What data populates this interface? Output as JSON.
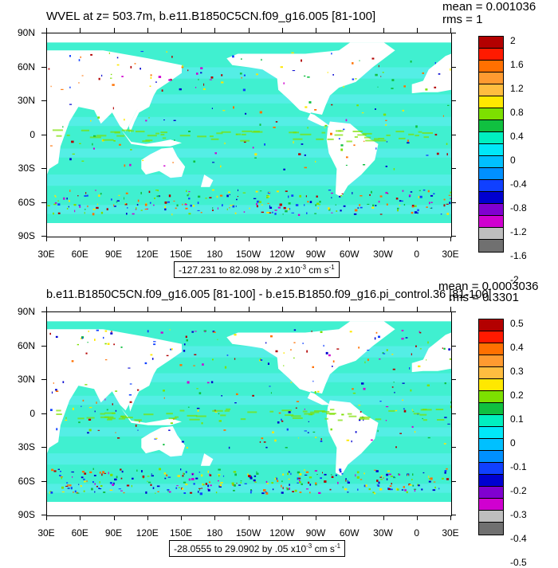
{
  "chart_data": [
    {
      "type": "heatmap",
      "title": "WVEL at z= 503.7m, b.e11.B1850C5CN.f09_g16.005 [81-100]",
      "stat_mean": "mean = 0.001036",
      "stat_rms": "rms = 1",
      "range_text": "-127.231 to 82.098 by .2 x10",
      "range_exp": "-3",
      "range_unit": " cm s",
      "range_unit_exp": "-1",
      "x_ticks": [
        "30E",
        "60E",
        "90E",
        "120E",
        "150E",
        "180",
        "150W",
        "120W",
        "90W",
        "60W",
        "30W",
        "0",
        "30E"
      ],
      "y_ticks": [
        "90N",
        "60N",
        "30N",
        "0",
        "30S",
        "60S",
        "90S"
      ],
      "colorbar_labels": [
        "2",
        "1.6",
        "1.2",
        "0.8",
        "0.4",
        "0",
        "-0.4",
        "-0.8",
        "-1.2",
        "-1.6",
        "-2"
      ],
      "colorbar_colors": [
        "#b30000",
        "#ff1a00",
        "#ff7000",
        "#ff9a30",
        "#ffbd40",
        "#ffe800",
        "#7de000",
        "#10c040",
        "#00f0c0",
        "#00e8f8",
        "#00c0ff",
        "#0090ff",
        "#1040ff",
        "#0000d0",
        "#8000d0",
        "#d000d0",
        "#bebebe",
        "#707070"
      ]
    },
    {
      "type": "heatmap",
      "title": "b.e11.B1850C5CN.f09_g16.005 [81-100] - b.e15.B1850.f09_g16.pi_control.36 [81-100]",
      "stat_mean": "mean = 0.0003036",
      "stat_rms": "rms = 0.3301",
      "range_text": "-28.0555 to 29.0902 by .05 x10",
      "range_exp": "-3",
      "range_unit": " cm s",
      "range_unit_exp": "-1",
      "x_ticks": [
        "30E",
        "60E",
        "90E",
        "120E",
        "150E",
        "180",
        "150W",
        "120W",
        "90W",
        "60W",
        "30W",
        "0",
        "30E"
      ],
      "y_ticks": [
        "90N",
        "60N",
        "30N",
        "0",
        "30S",
        "60S",
        "90S"
      ],
      "colorbar_labels": [
        "0.5",
        "0.4",
        "0.3",
        "0.2",
        "0.1",
        "0",
        "-0.1",
        "-0.2",
        "-0.3",
        "-0.4",
        "-0.5"
      ],
      "colorbar_colors": [
        "#b30000",
        "#ff1a00",
        "#ff7000",
        "#ff9a30",
        "#ffbd40",
        "#ffe800",
        "#7de000",
        "#10c040",
        "#00f0c0",
        "#00e8f8",
        "#00c0ff",
        "#0090ff",
        "#1040ff",
        "#0000d0",
        "#8000d0",
        "#d000d0",
        "#bebebe",
        "#707070"
      ]
    }
  ],
  "colors": {
    "ocean_base": "#40f0d0",
    "ocean_band": "#60ecf0",
    "land": "#ffffff"
  }
}
